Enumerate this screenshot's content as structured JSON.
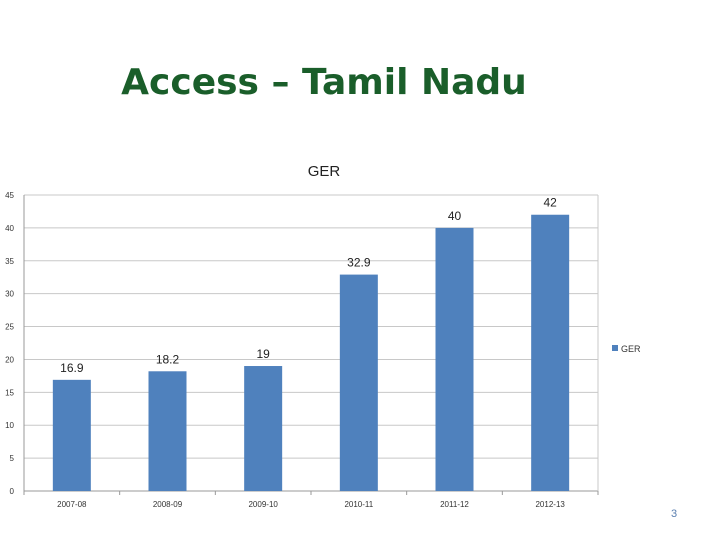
{
  "slide": {
    "title": "Access – Tamil Nadu",
    "page_number": "3"
  },
  "colors": {
    "title": "#1a5e2a",
    "bar": "#4f81bd",
    "grid": "#c8c8c8",
    "axis_text": "#333333"
  },
  "chart_data": {
    "type": "bar",
    "title": "GER",
    "xlabel": "",
    "ylabel": "",
    "categories": [
      "2007-08",
      "2008-09",
      "2009-10",
      "2010-11",
      "2011-12",
      "2012-13"
    ],
    "series": [
      {
        "name": "GER",
        "values": [
          16.9,
          18.2,
          19,
          32.9,
          40,
          42
        ]
      }
    ],
    "data_labels": [
      "16.9",
      "18.2",
      "19",
      "32.9",
      "40",
      "42"
    ],
    "ylim": [
      0,
      45
    ],
    "y_ticks": [
      0,
      5,
      10,
      15,
      20,
      25,
      30,
      35,
      40,
      45
    ],
    "grid": true,
    "legend_position": "right"
  }
}
